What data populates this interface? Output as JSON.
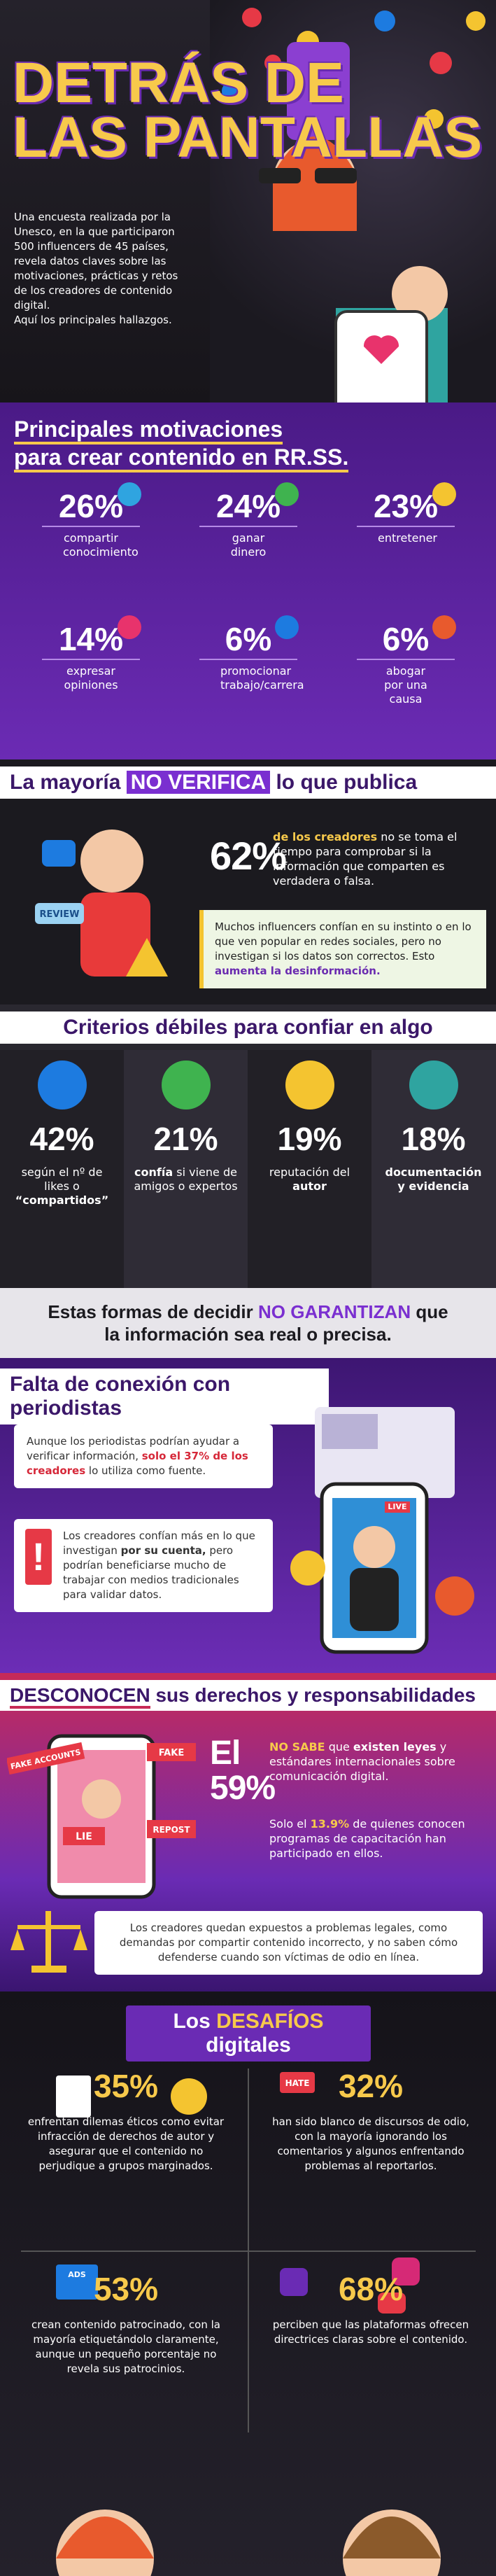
{
  "header": {
    "title_line1": "DETRÁS DE",
    "title_line2": "LAS PANTALLAS",
    "intro": "Una encuesta realizada por la Unesco, en la que participaron 500 influencers de 45 países, revela datos claves sobre las motivaciones, prácticas y retos de los creadores de contenido digital.",
    "intro_note": "Aquí los principales hallazgos."
  },
  "motivations": {
    "heading_line1": "Principales motivaciones",
    "heading_line2": "para crear contenido en RR.SS.",
    "items": [
      {
        "percent": "26%",
        "label": "compartir conocimiento"
      },
      {
        "percent": "24%",
        "label": "ganar dinero"
      },
      {
        "percent": "23%",
        "label": "entretener"
      },
      {
        "percent": "14%",
        "label": "expresar opiniones"
      },
      {
        "percent": "6%",
        "label": "promocionar trabajo/carrera"
      },
      {
        "percent": "6%",
        "label": "abogar por una causa"
      }
    ]
  },
  "verification": {
    "heading": [
      "La mayoría",
      "NO VERIFICA",
      "lo que publica"
    ],
    "percent": "62%",
    "statement": [
      "de los creadores",
      "no se toma el tiempo para comprobar si la información que comparten es verdadera o falsa."
    ],
    "note": [
      "Muchos influencers confían en su instinto o en lo que ven popular en redes sociales, pero no investigan si los datos son correctos. Esto",
      "aumenta la desinformación."
    ],
    "illustration_label": "REVIEW"
  },
  "criteria": {
    "heading": "Criterios débiles para confiar en algo",
    "items": [
      {
        "percent": "42%",
        "label": [
          "según el nº de likes o",
          "“compartidos”"
        ]
      },
      {
        "percent": "21%",
        "label": [
          "confía",
          "si viene de amigos o expertos"
        ]
      },
      {
        "percent": "19%",
        "label": [
          "reputación del",
          "autor"
        ]
      },
      {
        "percent": "18%",
        "label": [
          "documentación y evidencia"
        ]
      }
    ],
    "warning": [
      "Estas formas de decidir",
      "NO GARANTIZAN",
      "que la información sea real o precisa."
    ]
  },
  "journalists": {
    "heading": "Falta de conexión con periodistas",
    "paragraph1": [
      "Aunque los periodistas podrían ayudar a verificar información,",
      "solo el 37% de los creadores",
      "lo utiliza como fuente."
    ],
    "paragraph2": [
      "Los creadores confían más en lo que investigan",
      "por su cuenta,",
      "pero podrían beneficiarse mucho de trabajar con medios tradicionales para validar datos."
    ],
    "illustration_label": "LIVE"
  },
  "rights": {
    "heading": [
      "DESCONOCEN",
      "sus derechos y responsabilidades"
    ],
    "big": [
      "El",
      "59%"
    ],
    "statement": [
      "NO SABE",
      "que",
      "existen leyes",
      "y estándares internacionales sobre comunicación digital."
    ],
    "training": [
      "Solo el",
      "13.9%",
      "de quienes conocen programas de capacitación han participado en ellos."
    ],
    "note": "Los creadores quedan expuestos a problemas legales, como demandas por compartir contenido incorrecto, y no saben cómo defenderse cuando son víctimas de odio en línea.",
    "illustration_labels": [
      "FAKE ACCOUNTS",
      "FAKE",
      "LIE",
      "REPOST"
    ]
  },
  "challenges": {
    "heading": [
      "Los",
      "DESAFÍOS",
      "digitales"
    ],
    "items": [
      {
        "percent": "35%",
        "text": "enfrentan dilemas éticos como evitar infracción de derechos de autor y asegurar que el contenido no perjudique a grupos marginados."
      },
      {
        "percent": "32%",
        "text": "han sido blanco de discursos de odio, con la mayoría ignorando los comentarios y algunos enfrentando problemas al reportarlos."
      },
      {
        "percent": "53%",
        "text": "crean contenido patrocinado, con la mayoría etiquetándolo claramente, aunque un pequeño porcentaje no revela sus patrocinios."
      },
      {
        "percent": "68%",
        "text": "perciben que las plataformas ofrecen directrices claras sobre el contenido."
      }
    ],
    "illustration_labels": [
      "HATE",
      "ADS"
    ]
  }
}
